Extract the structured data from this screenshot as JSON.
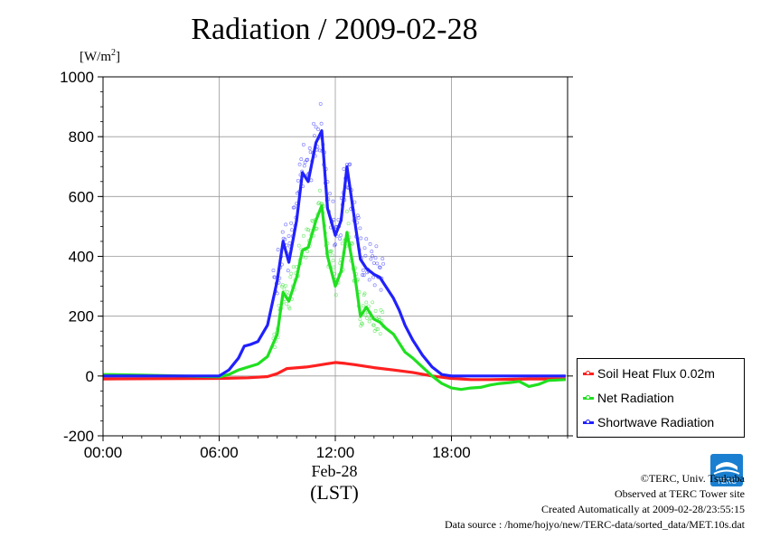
{
  "title": "Radiation / 2009-02-28",
  "y_unit": "[W/m",
  "y_unit_sup": "2",
  "y_unit_close": "]",
  "x_date_label": "Feb-28",
  "x_unit_label": "(LST)",
  "legend": [
    {
      "label": "Soil Heat Flux 0.02m",
      "color": "#ff2020"
    },
    {
      "label": "Net Radiation",
      "color": "#20e020"
    },
    {
      "label": "Shortwave Radiation",
      "color": "#2020ff"
    }
  ],
  "footer": {
    "copyright": "©TERC, Univ. Tsukuba",
    "observed": "Observed at TERC Tower site",
    "created": "Created Automatically at 2009-02-28/23:55:15",
    "source": "Data source : /home/hojyo/new/TERC-data/sorted_data/MET.10s.dat"
  },
  "logo_text": "TERC",
  "chart_data": {
    "type": "line",
    "title": "Radiation / 2009-02-28",
    "ylabel": "[W/m2]",
    "xlabel": "(LST)",
    "ylim": [
      -200,
      1000
    ],
    "xlim": [
      0,
      24
    ],
    "yticks": [
      -200,
      0,
      200,
      400,
      600,
      800,
      1000
    ],
    "yticks_labels": [
      "-200",
      "0",
      "200",
      "400",
      "600",
      "800",
      "1000"
    ],
    "xticks": [
      0,
      6,
      12,
      18
    ],
    "xticks_labels": [
      "00:00",
      "06:00",
      "12:00",
      "18:00"
    ],
    "grid": true,
    "legend_position": "right",
    "series": [
      {
        "name": "Soil Heat Flux 0.02m",
        "color": "#ff2020",
        "x": [
          0,
          3,
          6,
          7.5,
          8.5,
          9,
          9.5,
          10.5,
          11,
          11.5,
          12,
          12.5,
          13,
          14,
          15,
          16,
          17,
          18,
          19,
          20,
          21,
          22,
          23,
          23.9
        ],
        "values": [
          -10,
          -9,
          -8,
          -6,
          -2,
          8,
          25,
          30,
          35,
          40,
          45,
          42,
          38,
          28,
          20,
          12,
          0,
          -8,
          -12,
          -12,
          -11,
          -10,
          -10,
          -10
        ]
      },
      {
        "name": "Net Radiation",
        "color": "#20e020",
        "x": [
          0,
          2,
          4,
          5.5,
          6,
          6.5,
          7,
          7.5,
          8,
          8.5,
          9,
          9.3,
          9.6,
          10,
          10.3,
          10.6,
          11,
          11.3,
          11.6,
          12,
          12.3,
          12.6,
          13,
          13.3,
          13.6,
          14,
          14.3,
          14.6,
          15,
          15.3,
          15.6,
          16,
          16.5,
          17,
          17.5,
          18,
          18.5,
          19,
          19.5,
          20,
          20.5,
          21,
          21.5,
          22,
          22.5,
          23,
          23.9
        ],
        "values": [
          5,
          3,
          0,
          -2,
          -3,
          5,
          20,
          30,
          40,
          65,
          140,
          280,
          250,
          330,
          420,
          430,
          520,
          570,
          400,
          300,
          350,
          480,
          340,
          200,
          230,
          190,
          180,
          160,
          140,
          110,
          80,
          60,
          30,
          0,
          -25,
          -40,
          -45,
          -40,
          -38,
          -30,
          -25,
          -22,
          -18,
          -35,
          -28,
          -15,
          -12
        ]
      },
      {
        "name": "Shortwave Radiation",
        "color": "#2020ff",
        "x": [
          0,
          2,
          4,
          5.5,
          6,
          6.5,
          7,
          7.3,
          7.6,
          8,
          8.5,
          9,
          9.3,
          9.6,
          10,
          10.3,
          10.6,
          11,
          11.3,
          11.6,
          12,
          12.3,
          12.6,
          13,
          13.3,
          13.6,
          14,
          14.3,
          14.6,
          15,
          15.3,
          15.6,
          16,
          16.5,
          17,
          17.5,
          18,
          19,
          20,
          21,
          22,
          23,
          23.9
        ],
        "values": [
          0,
          0,
          0,
          0,
          0,
          20,
          60,
          100,
          105,
          115,
          170,
          320,
          450,
          380,
          520,
          680,
          650,
          780,
          820,
          560,
          470,
          520,
          700,
          520,
          390,
          360,
          340,
          330,
          300,
          260,
          220,
          170,
          120,
          70,
          30,
          5,
          0,
          0,
          0,
          0,
          0,
          0,
          0
        ]
      }
    ]
  }
}
